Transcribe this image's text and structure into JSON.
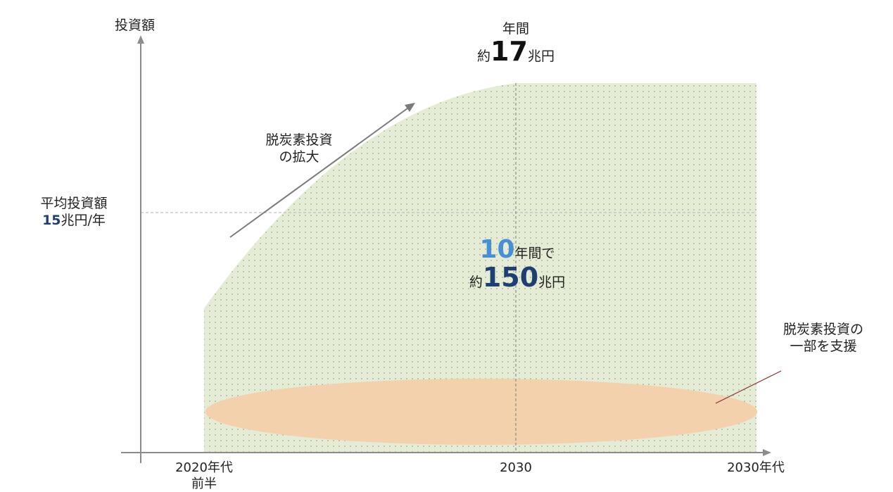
{
  "y_axis_label": "投資額",
  "avg": {
    "line1": "平均投資額",
    "value": "15",
    "unit": "兆円/年"
  },
  "annual": {
    "line1": "年間",
    "prefix": "約",
    "value": "17",
    "unit": "兆円"
  },
  "arrow_label": {
    "line1": "脱炭素投資",
    "line2": "の拡大"
  },
  "total": {
    "years": "10",
    "years_suffix": "年間で",
    "prefix": "約",
    "value": "150",
    "unit": "兆円"
  },
  "support": {
    "line1": "脱炭素投資の",
    "line2": "一部を支援"
  },
  "x_ticks": [
    "2020年代",
    "前半",
    "2030",
    "2030年代"
  ],
  "colors": {
    "area": "#e5ecd6",
    "ellipse": "#f3d1ad",
    "navy": "#1f3f73",
    "blue": "#4a8fd3"
  }
}
